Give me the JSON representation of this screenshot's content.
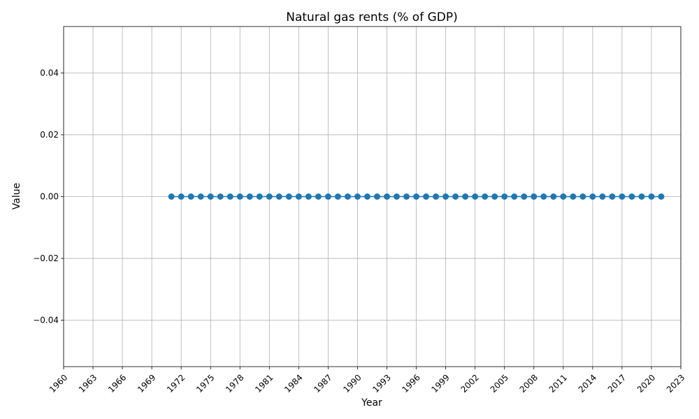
{
  "chart_data": {
    "type": "line",
    "title": "Natural gas rents (% of GDP)",
    "xlabel": "Year",
    "ylabel": "Value",
    "xlim": [
      1960,
      2023
    ],
    "ylim": [
      -0.055,
      0.055
    ],
    "x_ticks": [
      1960,
      1963,
      1966,
      1969,
      1972,
      1975,
      1978,
      1981,
      1984,
      1987,
      1990,
      1993,
      1996,
      1999,
      2002,
      2005,
      2008,
      2011,
      2014,
      2017,
      2020,
      2023
    ],
    "y_ticks": [
      -0.04,
      -0.02,
      0.0,
      0.02,
      0.04
    ],
    "y_tick_labels": [
      "−0.04",
      "−0.02",
      "0.00",
      "0.02",
      "0.04"
    ],
    "grid": true,
    "marker": "circle",
    "color": "#1f77b4",
    "series": [
      {
        "x": [
          1971,
          1972,
          1973,
          1974,
          1975,
          1976,
          1977,
          1978,
          1979,
          1980,
          1981,
          1982,
          1983,
          1984,
          1985,
          1986,
          1987,
          1988,
          1989,
          1990,
          1991,
          1992,
          1993,
          1994,
          1995,
          1996,
          1997,
          1998,
          1999,
          2000,
          2001,
          2002,
          2003,
          2004,
          2005,
          2006,
          2007,
          2008,
          2009,
          2010,
          2011,
          2012,
          2013,
          2014,
          2015,
          2016,
          2017,
          2018,
          2019,
          2020,
          2021
        ],
        "values": [
          0,
          0,
          0,
          0,
          0,
          0,
          0,
          0,
          0,
          0,
          0,
          0,
          0,
          0,
          0,
          0,
          0,
          0,
          0,
          0,
          0,
          0,
          0,
          0,
          0,
          0,
          0,
          0,
          0,
          0,
          0,
          0,
          0,
          0,
          0,
          0,
          0,
          0,
          0,
          0,
          0,
          0,
          0,
          0,
          0,
          0,
          0,
          0,
          0,
          0,
          0
        ]
      }
    ]
  }
}
